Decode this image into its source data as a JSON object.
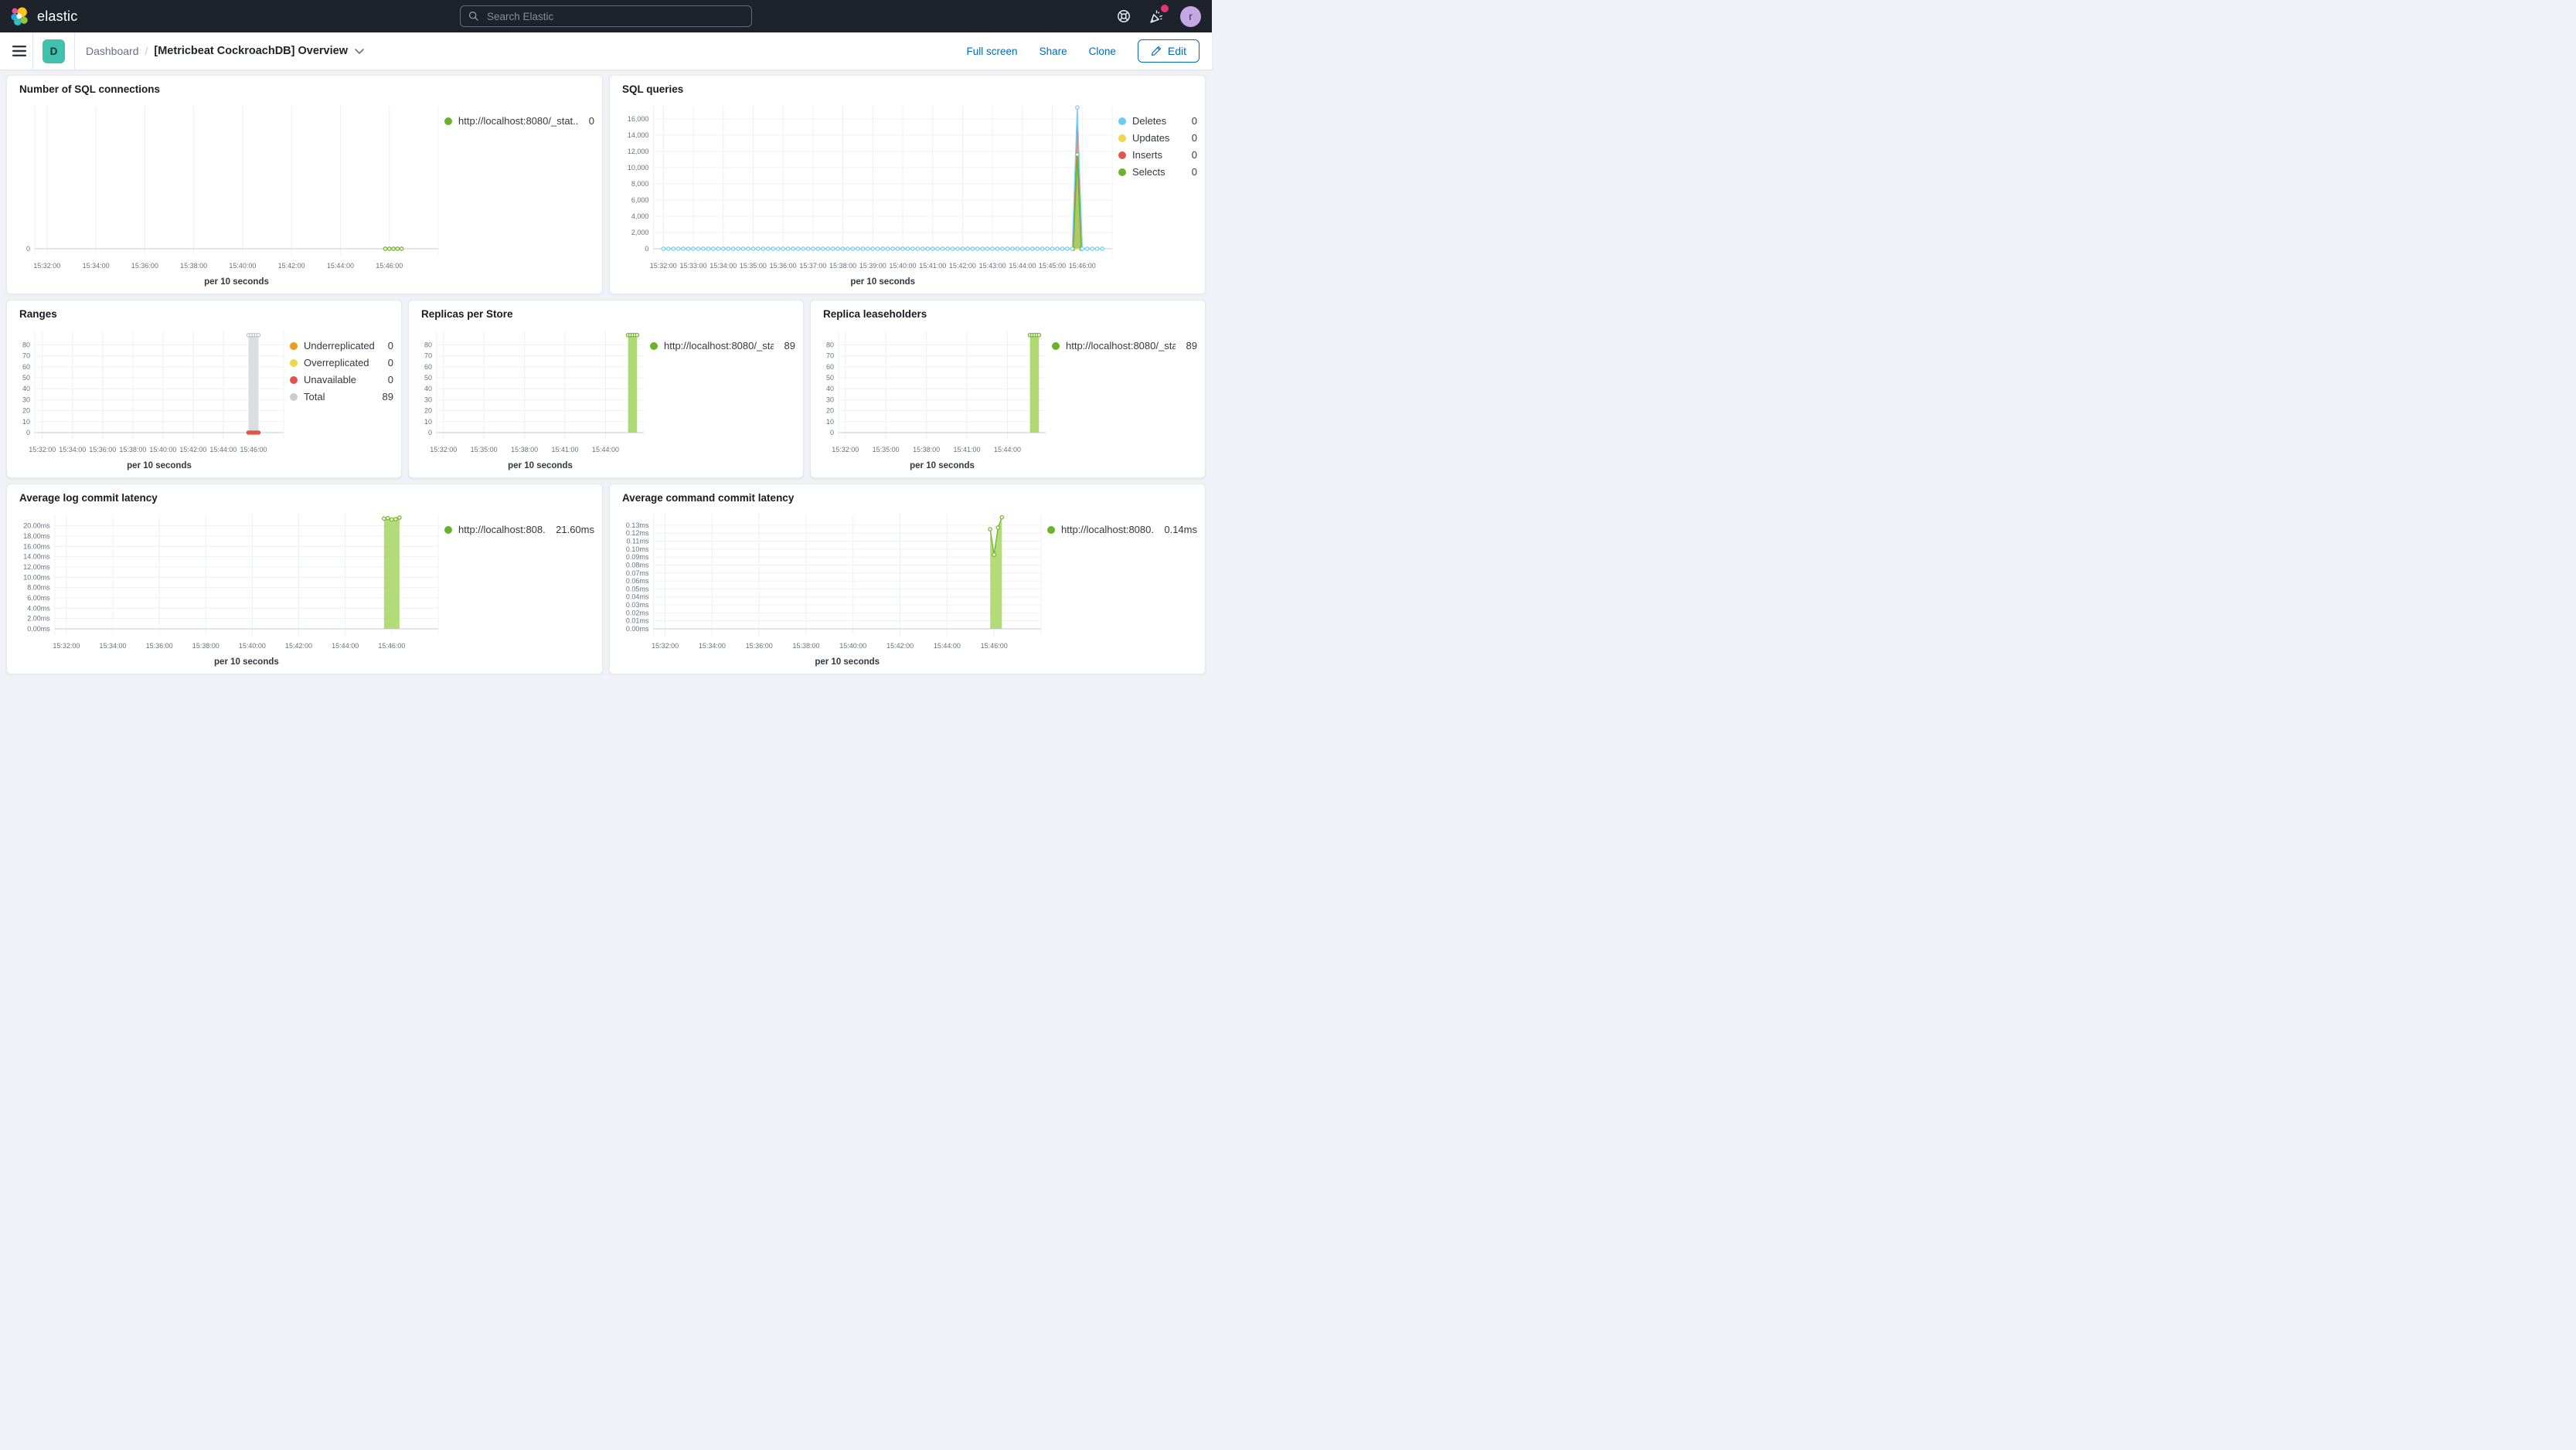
{
  "topbar": {
    "brand": "elastic",
    "search_placeholder": "Search Elastic",
    "avatar_initial": "r"
  },
  "toolbar": {
    "badge": "D",
    "breadcrumb_root": "Dashboard",
    "breadcrumb_sep": "/",
    "title": "[Metricbeat CockroachDB] Overview",
    "actions": {
      "full_screen": "Full screen",
      "share": "Share",
      "clone": "Clone",
      "edit": "Edit"
    }
  },
  "colors": {
    "accent_blue": "#006BB4",
    "topbar_bg": "#1D222B",
    "space_badge": "#3FC1AD",
    "notification": "#E6356E",
    "series_green": "#77B92E",
    "series_blue": "#7DCFF2",
    "series_red": "#E0564A",
    "series_yellow": "#EFD64B",
    "series_orange": "#EE9A1D",
    "series_gray": "#C9CCD1"
  },
  "charts": [
    {
      "id": "sql-connections",
      "type": "line",
      "title": "Number of SQL connections",
      "x_label": "per 10 seconds",
      "xlim": [
        "15:31:30",
        "15:48:00"
      ],
      "x_ticks": [
        "15:32:00",
        "15:34:00",
        "15:36:00",
        "15:38:00",
        "15:40:00",
        "15:42:00",
        "15:44:00",
        "15:46:00"
      ],
      "ylim": [
        0,
        9
      ],
      "y_ticks": [
        {
          "v": 0,
          "label": "0"
        }
      ],
      "legend": [
        {
          "label": "http://localhost:8080/_stat...",
          "value": "0",
          "color": "#69B32A"
        }
      ],
      "series": [
        {
          "name": "http://localhost:8080/_stat...",
          "type": "line",
          "color": "#77B92E",
          "markers": true,
          "points": [
            [
              "15:45:50",
              0
            ],
            [
              "15:46:00",
              0
            ],
            [
              "15:46:10",
              0
            ],
            [
              "15:46:20",
              0
            ],
            [
              "15:46:30",
              0
            ]
          ]
        }
      ]
    },
    {
      "id": "sql-queries",
      "type": "area",
      "title": "SQL queries",
      "x_label": "per 10 seconds",
      "xlim": [
        "15:31:40",
        "15:47:00"
      ],
      "x_ticks": [
        "15:32:00",
        "15:33:00",
        "15:34:00",
        "15:35:00",
        "15:36:00",
        "15:37:00",
        "15:38:00",
        "15:39:00",
        "15:40:00",
        "15:41:00",
        "15:42:00",
        "15:43:00",
        "15:44:00",
        "15:45:00",
        "15:46:00"
      ],
      "ylim": [
        0,
        17600
      ],
      "y_ticks": [
        {
          "v": 0,
          "label": "0"
        },
        {
          "v": 2000,
          "label": "2,000"
        },
        {
          "v": 4000,
          "label": "4,000"
        },
        {
          "v": 6000,
          "label": "6,000"
        },
        {
          "v": 8000,
          "label": "8,000"
        },
        {
          "v": 10000,
          "label": "10,000"
        },
        {
          "v": 12000,
          "label": "12,000"
        },
        {
          "v": 14000,
          "label": "14,000"
        },
        {
          "v": 16000,
          "label": "16,000"
        }
      ],
      "legend": [
        {
          "label": "Deletes",
          "value": "0",
          "color": "#6DCCF1"
        },
        {
          "label": "Updates",
          "value": "0",
          "color": "#EFD64B"
        },
        {
          "label": "Inserts",
          "value": "0",
          "color": "#E0564A"
        },
        {
          "label": "Selects",
          "value": "0",
          "color": "#69B32A"
        }
      ],
      "series": [
        {
          "name": "Inserts",
          "type": "area",
          "color": "#E0564A",
          "fill": "rgba(224,87,71,0.55)",
          "points": [
            [
              "15:45:41",
              0
            ],
            [
              "15:45:50",
              16400
            ],
            [
              "15:45:59",
              0
            ]
          ]
        },
        {
          "name": "Selects",
          "type": "area",
          "color": "#69B32A",
          "fill": "rgba(160,208,88,0.8)",
          "markers": true,
          "points": [
            [
              "15:45:42",
              0
            ],
            [
              "15:45:50",
              11600
            ],
            [
              "15:45:58",
              0
            ]
          ]
        },
        {
          "name": "Updates",
          "type": "line",
          "color": "#EFD64B",
          "flat": {
            "from": "15:32:00",
            "to": "15:46:40",
            "step": 10,
            "y": 0
          }
        },
        {
          "name": "Deletes",
          "type": "line",
          "color": "#7DCFF2",
          "markers": true,
          "flat": {
            "from": "15:32:00",
            "to": "15:46:40",
            "step": 10,
            "y": 0
          },
          "points": [
            [
              "15:45:50",
              17400
            ]
          ]
        }
      ]
    },
    {
      "id": "ranges",
      "type": "bar",
      "title": "Ranges",
      "x_label": "per 10 seconds",
      "xlim": [
        "15:31:30",
        "15:48:00"
      ],
      "x_ticks": [
        "15:32:00",
        "15:34:00",
        "15:36:00",
        "15:38:00",
        "15:40:00",
        "15:42:00",
        "15:44:00",
        "15:46:00"
      ],
      "ylim": [
        0,
        93
      ],
      "y_ticks": [
        {
          "v": 0,
          "label": "0"
        },
        {
          "v": 10,
          "label": "10"
        },
        {
          "v": 20,
          "label": "20"
        },
        {
          "v": 30,
          "label": "30"
        },
        {
          "v": 40,
          "label": "40"
        },
        {
          "v": 50,
          "label": "50"
        },
        {
          "v": 60,
          "label": "60"
        },
        {
          "v": 70,
          "label": "70"
        },
        {
          "v": 80,
          "label": "80"
        }
      ],
      "legend": [
        {
          "label": "Underreplicated",
          "value": "0",
          "color": "#EE9A1D"
        },
        {
          "label": "Overreplicated",
          "value": "0",
          "color": "#EFD64B"
        },
        {
          "label": "Unavailable",
          "value": "0",
          "color": "#E0564A"
        },
        {
          "label": "Total",
          "value": "89",
          "color": "#C9CCD1"
        }
      ],
      "series": [
        {
          "name": "Total",
          "type": "bar",
          "color": "#DBDDE2",
          "x_start": "15:45:40",
          "x_end": "15:46:20",
          "value": 89
        },
        {
          "name": "Total markers",
          "type": "points",
          "color": "#C2C5CB",
          "points": [
            [
              "15:45:40",
              89
            ],
            [
              "15:45:50",
              89
            ],
            [
              "15:46:00",
              89
            ],
            [
              "15:46:10",
              89
            ],
            [
              "15:46:20",
              89
            ]
          ]
        },
        {
          "name": "Unavailable",
          "type": "points",
          "color": "#E0564A",
          "filled": true,
          "points": [
            [
              "15:45:40",
              0
            ],
            [
              "15:45:50",
              0
            ],
            [
              "15:46:00",
              0
            ],
            [
              "15:46:10",
              0
            ],
            [
              "15:46:20",
              0
            ]
          ]
        }
      ]
    },
    {
      "id": "replicas-per-store",
      "type": "bar",
      "title": "Replicas per Store",
      "x_label": "per 10 seconds",
      "xlim": [
        "15:31:30",
        "15:46:50"
      ],
      "x_ticks": [
        "15:32:00",
        "15:35:00",
        "15:38:00",
        "15:41:00",
        "15:44:00"
      ],
      "ylim": [
        0,
        93
      ],
      "y_ticks": [
        {
          "v": 0,
          "label": "0"
        },
        {
          "v": 10,
          "label": "10"
        },
        {
          "v": 20,
          "label": "20"
        },
        {
          "v": 30,
          "label": "30"
        },
        {
          "v": 40,
          "label": "40"
        },
        {
          "v": 50,
          "label": "50"
        },
        {
          "v": 60,
          "label": "60"
        },
        {
          "v": 70,
          "label": "70"
        },
        {
          "v": 80,
          "label": "80"
        }
      ],
      "legend": [
        {
          "label": "http://localhost:8080/_sta...",
          "value": "89",
          "color": "#69B32A"
        }
      ],
      "series": [
        {
          "name": "http://localhost:8080/_sta...",
          "type": "bar",
          "color": "#AFD971",
          "x_start": "15:45:40",
          "x_end": "15:46:20",
          "value": 89
        },
        {
          "name": "markers",
          "type": "points",
          "color": "#77B92E",
          "points": [
            [
              "15:45:40",
              89
            ],
            [
              "15:45:50",
              89
            ],
            [
              "15:46:00",
              89
            ],
            [
              "15:46:10",
              89
            ],
            [
              "15:46:20",
              89
            ]
          ]
        }
      ]
    },
    {
      "id": "replica-leaseholders",
      "type": "bar",
      "title": "Replica leaseholders",
      "x_label": "per 10 seconds",
      "xlim": [
        "15:31:30",
        "15:46:50"
      ],
      "x_ticks": [
        "15:32:00",
        "15:35:00",
        "15:38:00",
        "15:41:00",
        "15:44:00"
      ],
      "ylim": [
        0,
        93
      ],
      "y_ticks": [
        {
          "v": 0,
          "label": "0"
        },
        {
          "v": 10,
          "label": "10"
        },
        {
          "v": 20,
          "label": "20"
        },
        {
          "v": 30,
          "label": "30"
        },
        {
          "v": 40,
          "label": "40"
        },
        {
          "v": 50,
          "label": "50"
        },
        {
          "v": 60,
          "label": "60"
        },
        {
          "v": 70,
          "label": "70"
        },
        {
          "v": 80,
          "label": "80"
        }
      ],
      "legend": [
        {
          "label": "http://localhost:8080/_sta...",
          "value": "89",
          "color": "#69B32A"
        }
      ],
      "series": [
        {
          "name": "http://localhost:8080/_sta...",
          "type": "bar",
          "color": "#AFD971",
          "x_start": "15:45:40",
          "x_end": "15:46:20",
          "value": 89
        },
        {
          "name": "markers",
          "type": "points",
          "color": "#77B92E",
          "points": [
            [
              "15:45:40",
              89
            ],
            [
              "15:45:50",
              89
            ],
            [
              "15:46:00",
              89
            ],
            [
              "15:46:10",
              89
            ],
            [
              "15:46:20",
              89
            ]
          ]
        }
      ]
    },
    {
      "id": "avg-log-commit-latency",
      "type": "area",
      "title": "Average log commit latency",
      "x_label": "per 10 seconds",
      "xlim": [
        "15:31:30",
        "15:48:00"
      ],
      "x_ticks": [
        "15:32:00",
        "15:34:00",
        "15:36:00",
        "15:38:00",
        "15:40:00",
        "15:42:00",
        "15:44:00",
        "15:46:00"
      ],
      "ylim": [
        0,
        22.2
      ],
      "y_ticks": [
        {
          "v": 0,
          "label": "0.00ms"
        },
        {
          "v": 2,
          "label": "2.00ms"
        },
        {
          "v": 4,
          "label": "4.00ms"
        },
        {
          "v": 6,
          "label": "6.00ms"
        },
        {
          "v": 8,
          "label": "8.00ms"
        },
        {
          "v": 10,
          "label": "10.00ms"
        },
        {
          "v": 12,
          "label": "12.00ms"
        },
        {
          "v": 14,
          "label": "14.00ms"
        },
        {
          "v": 16,
          "label": "16.00ms"
        },
        {
          "v": 18,
          "label": "18.00ms"
        },
        {
          "v": 20,
          "label": "20.00ms"
        }
      ],
      "legend": [
        {
          "label": "http://localhost:808...",
          "value": "21.60ms",
          "color": "#69B32A"
        }
      ],
      "series": [
        {
          "name": "http://localhost:808...",
          "type": "area",
          "color": "#77B92E",
          "fill": "rgba(171,216,106,0.9)",
          "markers": true,
          "points": [
            [
              "15:45:40",
              21.4
            ],
            [
              "15:45:50",
              21.5
            ],
            [
              "15:46:00",
              21.2
            ],
            [
              "15:46:10",
              21.3
            ],
            [
              "15:46:20",
              21.6
            ]
          ]
        }
      ]
    },
    {
      "id": "avg-command-commit-latency",
      "type": "area",
      "title": "Average command commit latency",
      "x_label": "per 10 seconds",
      "xlim": [
        "15:31:30",
        "15:48:00"
      ],
      "x_ticks": [
        "15:32:00",
        "15:34:00",
        "15:36:00",
        "15:38:00",
        "15:40:00",
        "15:42:00",
        "15:44:00",
        "15:46:00"
      ],
      "ylim": [
        0,
        0.1435
      ],
      "y_ticks": [
        {
          "v": 0,
          "label": "0.00ms"
        },
        {
          "v": 0.01,
          "label": "0.01ms"
        },
        {
          "v": 0.02,
          "label": "0.02ms"
        },
        {
          "v": 0.03,
          "label": "0.03ms"
        },
        {
          "v": 0.04,
          "label": "0.04ms"
        },
        {
          "v": 0.05,
          "label": "0.05ms"
        },
        {
          "v": 0.06,
          "label": "0.06ms"
        },
        {
          "v": 0.07,
          "label": "0.07ms"
        },
        {
          "v": 0.08,
          "label": "0.08ms"
        },
        {
          "v": 0.09,
          "label": "0.09ms"
        },
        {
          "v": 0.1,
          "label": "0.10ms"
        },
        {
          "v": 0.11,
          "label": "0.11ms"
        },
        {
          "v": 0.12,
          "label": "0.12ms"
        },
        {
          "v": 0.13,
          "label": "0.13ms"
        }
      ],
      "legend": [
        {
          "label": "http://localhost:8080...",
          "value": "0.14ms",
          "color": "#69B32A"
        }
      ],
      "series": [
        {
          "name": "http://localhost:8080...",
          "type": "area",
          "color": "#77B92E",
          "fill": "rgba(171,216,106,0.9)",
          "markers": true,
          "points": [
            [
              "15:45:50",
              0.125
            ],
            [
              "15:46:00",
              0.093
            ],
            [
              "15:46:10",
              0.127
            ],
            [
              "15:46:20",
              0.14
            ]
          ]
        }
      ]
    }
  ]
}
